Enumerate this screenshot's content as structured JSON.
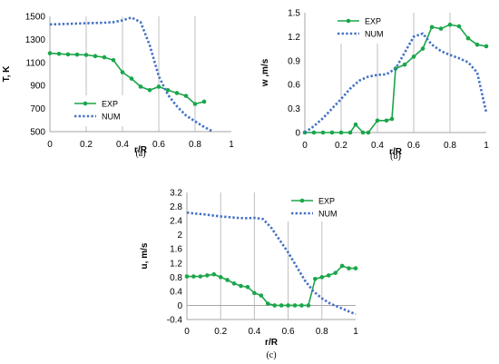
{
  "colors": {
    "exp": "#1aa64a",
    "num": "#4472c4",
    "grid": "#bfbfbf",
    "axis": "#a6a6a6"
  },
  "chart_data": [
    {
      "id": "a",
      "type": "line",
      "panel_label": "(a)",
      "xlabel": "r/R",
      "ylabel": "T, K",
      "xlim": [
        0,
        1
      ],
      "ylim": [
        500,
        1500
      ],
      "xticks": [
        "0",
        "0.2",
        "0.4",
        "0.6",
        "0.8",
        "1"
      ],
      "yticks": [
        "500",
        "700",
        "900",
        "1100",
        "1300",
        "1500"
      ],
      "grid": "vertical",
      "legend": "bottom-center",
      "series": [
        {
          "name": "EXP",
          "style": "solid-markers",
          "x": [
            0,
            0.05,
            0.1,
            0.15,
            0.2,
            0.25,
            0.3,
            0.35,
            0.4,
            0.45,
            0.5,
            0.55,
            0.6,
            0.65,
            0.7,
            0.75,
            0.8,
            0.85
          ],
          "y": [
            1180,
            1175,
            1170,
            1168,
            1165,
            1155,
            1145,
            1120,
            1015,
            960,
            890,
            860,
            890,
            860,
            835,
            810,
            740,
            760
          ]
        },
        {
          "name": "NUM",
          "style": "dotted",
          "x": [
            0,
            0.1,
            0.2,
            0.3,
            0.35,
            0.4,
            0.45,
            0.5,
            0.55,
            0.6,
            0.65,
            0.7,
            0.75,
            0.8,
            0.85,
            0.9
          ],
          "y": [
            1430,
            1435,
            1440,
            1445,
            1450,
            1465,
            1490,
            1450,
            1250,
            980,
            820,
            720,
            640,
            590,
            540,
            500
          ]
        }
      ]
    },
    {
      "id": "b",
      "type": "line",
      "panel_label": "(b)",
      "xlabel": "r/R",
      "ylabel": "w ,m/s",
      "xlim": [
        0,
        1
      ],
      "ylim": [
        0,
        1.5
      ],
      "xticks": [
        "0",
        "0.2",
        "0.4",
        "0.6",
        "0.8",
        "1"
      ],
      "yticks": [
        "0",
        "0.3",
        "0.6",
        "0.9",
        "1.2",
        "1.5"
      ],
      "grid": "vertical",
      "legend": "top-center",
      "series": [
        {
          "name": "EXP",
          "style": "solid-markers",
          "x": [
            0,
            0.05,
            0.1,
            0.15,
            0.2,
            0.25,
            0.28,
            0.32,
            0.35,
            0.4,
            0.45,
            0.48,
            0.5,
            0.55,
            0.6,
            0.65,
            0.7,
            0.75,
            0.8,
            0.85,
            0.9,
            0.95,
            1.0
          ],
          "y": [
            0,
            0,
            0,
            0,
            0,
            0,
            0.1,
            0,
            0,
            0.15,
            0.15,
            0.17,
            0.8,
            0.85,
            0.95,
            1.05,
            1.32,
            1.3,
            1.35,
            1.33,
            1.18,
            1.1,
            1.08
          ]
        },
        {
          "name": "NUM",
          "style": "dotted",
          "x": [
            0,
            0.05,
            0.1,
            0.15,
            0.2,
            0.25,
            0.3,
            0.35,
            0.4,
            0.45,
            0.5,
            0.55,
            0.6,
            0.65,
            0.7,
            0.75,
            0.8,
            0.85,
            0.9,
            0.95,
            1.0
          ],
          "y": [
            0,
            0.08,
            0.18,
            0.3,
            0.42,
            0.55,
            0.65,
            0.7,
            0.72,
            0.73,
            0.8,
            1.0,
            1.2,
            1.24,
            1.1,
            1.02,
            0.97,
            0.93,
            0.88,
            0.75,
            0.25
          ]
        }
      ]
    },
    {
      "id": "c",
      "type": "line",
      "panel_label": "(c)",
      "xlabel": "r/R",
      "ylabel": "u, m/s",
      "xlim": [
        0,
        1
      ],
      "ylim": [
        -0.4,
        3.2
      ],
      "xticks": [
        "0",
        "0.2",
        "0.4",
        "0.6",
        "0.8",
        "1"
      ],
      "yticks": [
        "-0.4",
        "0",
        "0.4",
        "0.8",
        "1.2",
        "1.6",
        "2",
        "2.4",
        "2.8",
        "3.2"
      ],
      "grid": "vertical",
      "legend": "top-right",
      "series": [
        {
          "name": "EXP",
          "style": "solid-markers",
          "x": [
            0,
            0.04,
            0.08,
            0.12,
            0.16,
            0.2,
            0.24,
            0.28,
            0.32,
            0.36,
            0.4,
            0.44,
            0.48,
            0.52,
            0.56,
            0.6,
            0.64,
            0.68,
            0.72,
            0.76,
            0.8,
            0.84,
            0.88,
            0.92,
            0.96,
            1.0
          ],
          "y": [
            0.82,
            0.82,
            0.82,
            0.85,
            0.88,
            0.8,
            0.72,
            0.62,
            0.55,
            0.52,
            0.35,
            0.28,
            0.05,
            0,
            0,
            0,
            0,
            0,
            0,
            0.75,
            0.8,
            0.85,
            0.92,
            1.12,
            1.05,
            1.05
          ]
        },
        {
          "name": "NUM",
          "style": "dotted",
          "x": [
            0,
            0.05,
            0.1,
            0.15,
            0.2,
            0.25,
            0.3,
            0.35,
            0.4,
            0.45,
            0.5,
            0.55,
            0.6,
            0.65,
            0.7,
            0.75,
            0.8,
            0.85,
            0.9,
            0.95,
            1.0
          ],
          "y": [
            2.63,
            2.6,
            2.58,
            2.55,
            2.52,
            2.5,
            2.48,
            2.47,
            2.48,
            2.45,
            2.2,
            1.85,
            1.5,
            1.1,
            0.7,
            0.4,
            0.2,
            0.05,
            -0.05,
            -0.15,
            -0.25
          ]
        }
      ]
    }
  ]
}
